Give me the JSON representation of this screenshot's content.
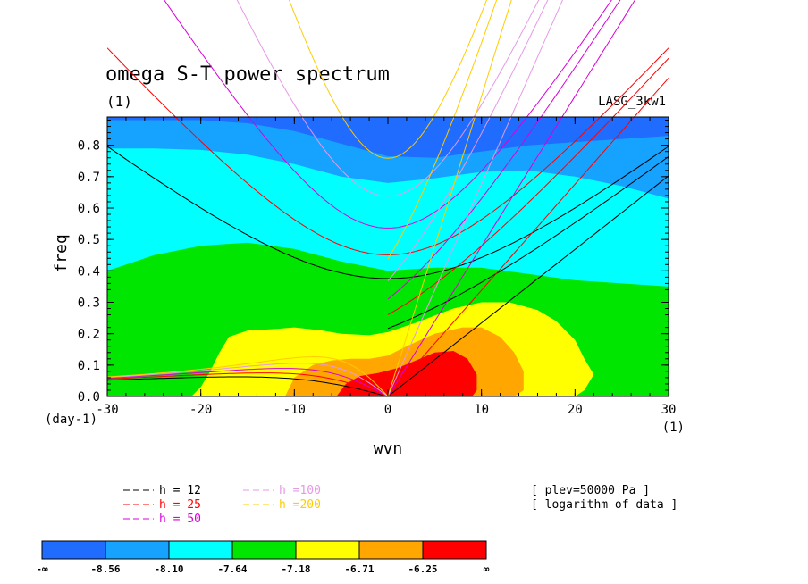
{
  "chart_data": {
    "type": "heatmap",
    "title": "omega S-T power spectrum",
    "units": "(1)",
    "dataset": "LASG_3kw1",
    "xlabel": "wvn",
    "x_units": "(1)",
    "ylabel": "freq",
    "y_units": "(day-1)",
    "xlim": [
      -30,
      30
    ],
    "ylim": [
      0,
      0.89
    ],
    "x_ticks": [
      -30,
      -20,
      -10,
      0,
      10,
      20,
      30
    ],
    "x_tick_labels": [
      "-30",
      "-20",
      "-10",
      "0",
      "10",
      "20",
      "30"
    ],
    "y_ticks": [
      0,
      0.1,
      0.2,
      0.3,
      0.4,
      0.5,
      0.6,
      0.7,
      0.8
    ],
    "y_tick_labels": [
      "0.0",
      "0.1",
      "0.2",
      "0.3",
      "0.4",
      "0.5",
      "0.6",
      "0.7",
      "0.8"
    ],
    "contour_levels": [
      "-∞",
      "-8.56",
      "-8.10",
      "-7.64",
      "-7.18",
      "-6.71",
      "-6.25",
      "∞"
    ],
    "fill_colors": [
      "#1f6cff",
      "#15a3ff",
      "#00ffff",
      "#00e600",
      "#ffff00",
      "#ffa600",
      "#ff0000"
    ],
    "band_boundaries": [
      {
        "level": "-8.56",
        "x": [
          -30,
          -25,
          -20,
          -15,
          -10,
          -5,
          0,
          5,
          10,
          15,
          20,
          25,
          30
        ],
        "y": [
          0.88,
          0.88,
          0.88,
          0.87,
          0.845,
          0.805,
          0.765,
          0.76,
          0.78,
          0.8,
          0.81,
          0.82,
          0.83
        ]
      },
      {
        "level": "-8.10",
        "x": [
          -30,
          -25,
          -20,
          -15,
          -10,
          -5,
          0,
          5,
          10,
          15,
          20,
          25,
          30
        ],
        "y": [
          0.79,
          0.79,
          0.785,
          0.77,
          0.74,
          0.7,
          0.68,
          0.695,
          0.715,
          0.72,
          0.7,
          0.67,
          0.63
        ]
      },
      {
        "level": "-7.64",
        "x": [
          -30,
          -25,
          -20,
          -15,
          -10,
          -5,
          0,
          5,
          10,
          15,
          20,
          25,
          30
        ],
        "y": [
          0.4,
          0.45,
          0.48,
          0.49,
          0.47,
          0.43,
          0.4,
          0.41,
          0.41,
          0.39,
          0.37,
          0.36,
          0.35
        ]
      },
      {
        "level": "-7.18",
        "shape": "closed",
        "x": [
          -21,
          -20,
          -19,
          -18,
          -17,
          -15,
          -12,
          -10,
          -7,
          -5,
          -2,
          0,
          3,
          7,
          10,
          13,
          16,
          18,
          20,
          21,
          22,
          21,
          20,
          10,
          0,
          -10,
          -20
        ],
        "y": [
          0,
          0.03,
          0.08,
          0.14,
          0.19,
          0.21,
          0.215,
          0.22,
          0.21,
          0.2,
          0.195,
          0.205,
          0.235,
          0.28,
          0.3,
          0.3,
          0.275,
          0.24,
          0.18,
          0.12,
          0.07,
          0.02,
          0,
          0,
          0,
          0,
          0
        ]
      },
      {
        "level": "-6.71",
        "shape": "closed",
        "x": [
          -11,
          -10,
          -8,
          -6,
          -4,
          -2,
          0,
          2,
          5,
          8,
          10,
          12,
          13.5,
          14.5,
          14.5,
          13.5,
          10,
          0,
          -10
        ],
        "y": [
          0,
          0.06,
          0.1,
          0.115,
          0.12,
          0.12,
          0.13,
          0.16,
          0.2,
          0.22,
          0.22,
          0.19,
          0.14,
          0.08,
          0.02,
          0,
          0,
          0,
          0
        ]
      },
      {
        "level": "-6.25",
        "shape": "closed",
        "x": [
          -5.5,
          -4.5,
          -3,
          -1,
          1,
          3,
          5,
          7,
          8.5,
          9.5,
          9.5,
          9,
          0,
          -5.5
        ],
        "y": [
          0,
          0.04,
          0.065,
          0.075,
          0.09,
          0.115,
          0.14,
          0.145,
          0.12,
          0.07,
          0.02,
          0,
          0,
          0
        ]
      }
    ],
    "dispersion_curves": [
      {
        "h": 12,
        "color": "#000000"
      },
      {
        "h": 25,
        "color": "#ff0000"
      },
      {
        "h": 50,
        "color": "#d900d9"
      },
      {
        "h": 100,
        "color": "#e699e6"
      },
      {
        "h": 200,
        "color": "#ffcc00"
      }
    ],
    "legend": {
      "placement": "bottom",
      "entries": [
        "h = 12",
        "h = 25",
        "h = 50",
        "h =100",
        "h =200"
      ]
    },
    "annotations": [
      "[ plev=50000 Pa ]",
      "[ logarithm of data ]"
    ]
  }
}
